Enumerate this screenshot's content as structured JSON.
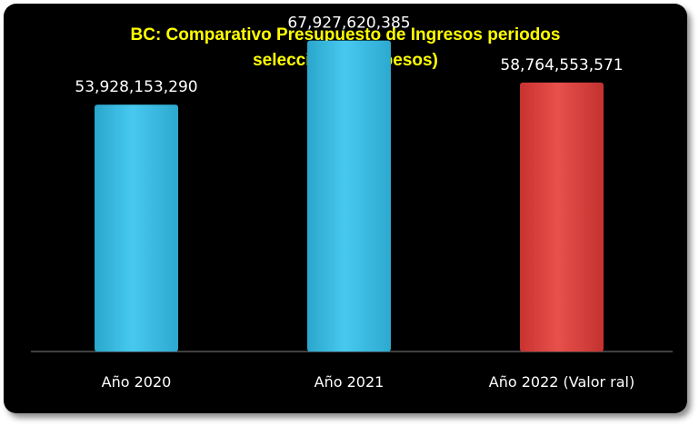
{
  "chart_data": {
    "type": "bar",
    "title_line1": "BC: Comparativo  Presupuesto de Ingresos periodos",
    "title_line2": "seleccionados (pesos)",
    "categories": [
      "Año 2020",
      "Año 2021",
      "Año 2022 (Valor ral)"
    ],
    "values": [
      53928153290,
      67927620385,
      58764553571
    ],
    "data_labels": [
      "53,928,153,290",
      "67,927,620,385",
      "58,764,553,571"
    ],
    "bar_colors": [
      "#3cc0e6",
      "#3cc0e6",
      "#e0403c"
    ],
    "ylim": [
      0,
      76000000000
    ],
    "grid": false,
    "legend": "none"
  }
}
